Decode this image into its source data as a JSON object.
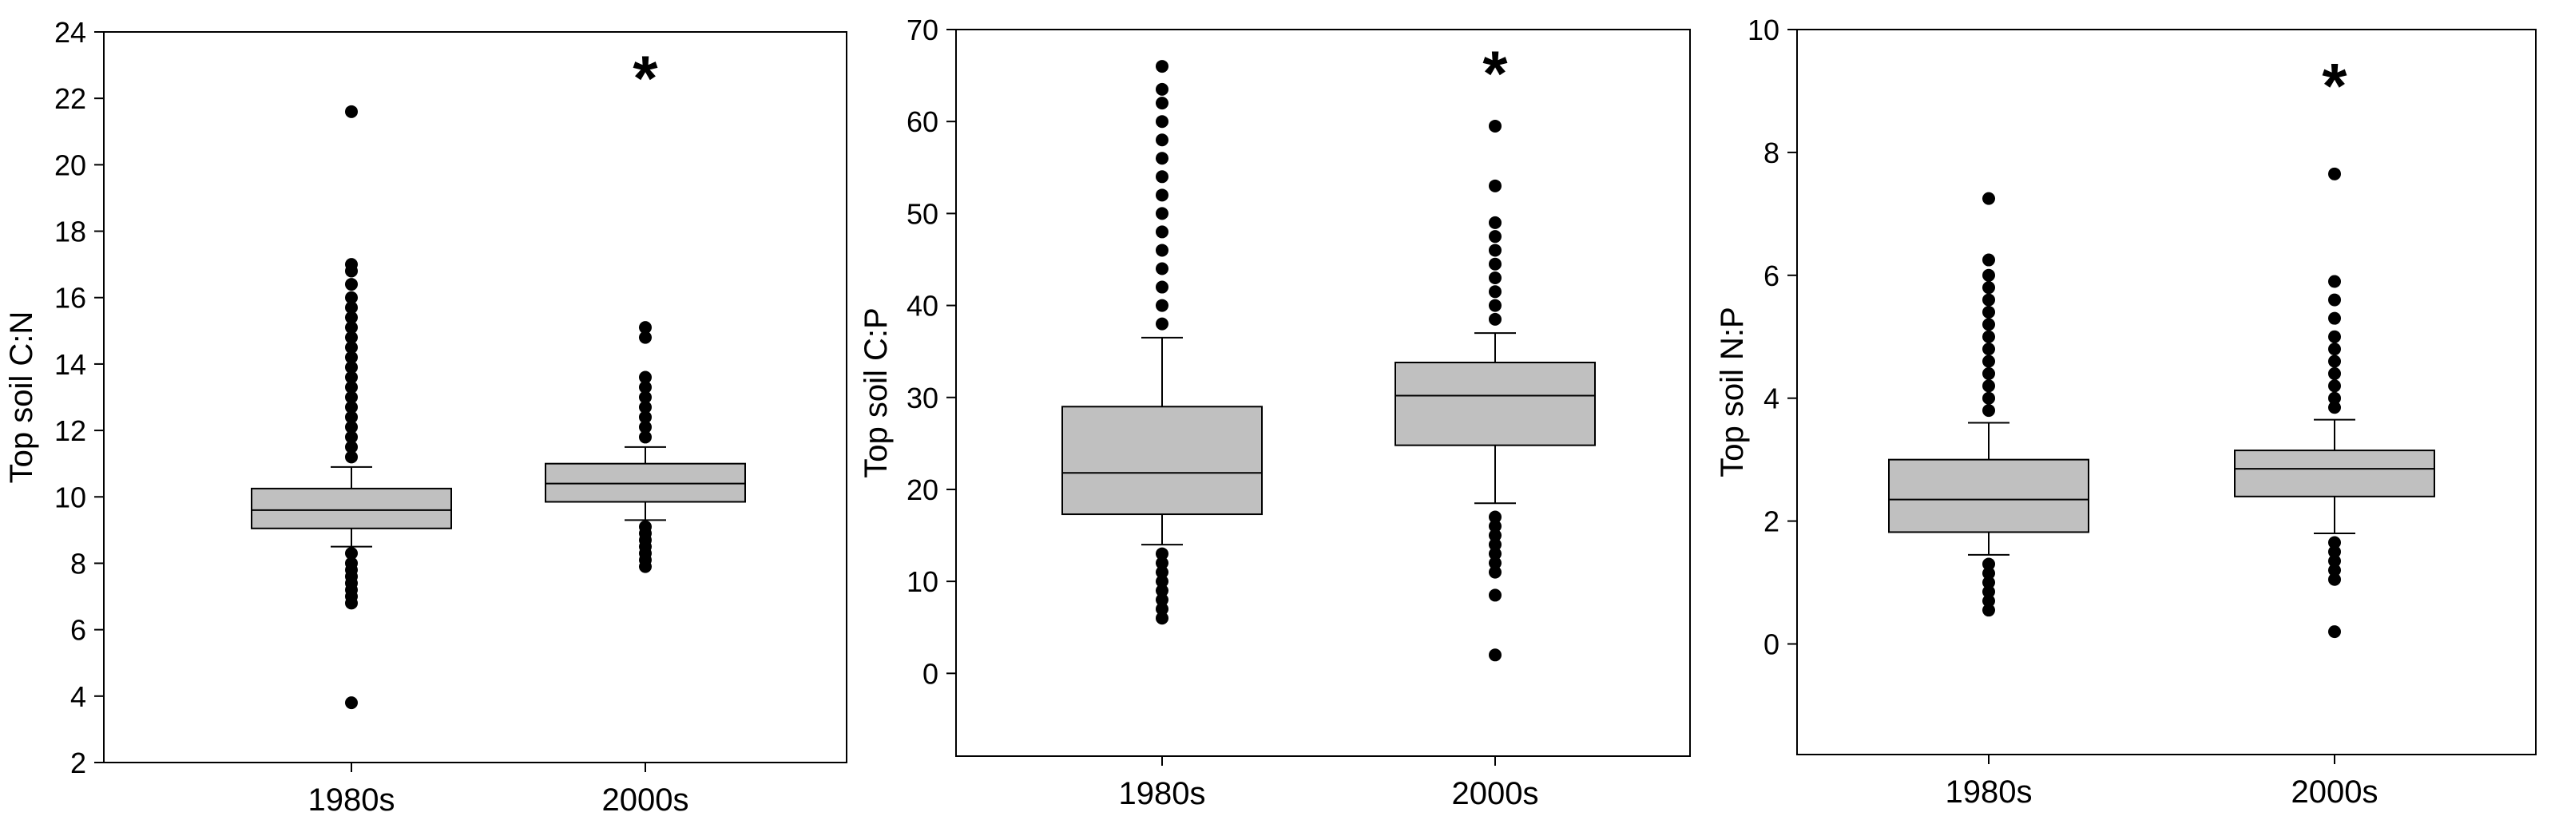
{
  "chart_data": [
    {
      "type": "boxplot",
      "ylabel": "Top soil C:N",
      "ylim": [
        2,
        24
      ],
      "yticks": [
        2,
        4,
        6,
        8,
        10,
        12,
        14,
        16,
        18,
        20,
        22,
        24
      ],
      "categories": [
        "1980s",
        "2000s"
      ],
      "boxes": [
        {
          "category": "1980s",
          "whisker_low": 8.5,
          "q1": 9.05,
          "median": 9.6,
          "q3": 10.25,
          "whisker_high": 10.9,
          "outliers_low": [
            8.3,
            8.0,
            7.8,
            7.6,
            7.4,
            7.2,
            7.0,
            6.8,
            3.8
          ],
          "outliers_high": [
            11.2,
            11.5,
            11.8,
            12.1,
            12.4,
            12.7,
            13.0,
            13.3,
            13.6,
            13.9,
            14.2,
            14.5,
            14.8,
            15.1,
            15.4,
            15.7,
            16.0,
            16.4,
            16.8,
            17.0,
            21.6
          ]
        },
        {
          "category": "2000s",
          "whisker_low": 9.3,
          "q1": 9.85,
          "median": 10.4,
          "q3": 11.0,
          "whisker_high": 11.5,
          "outliers_low": [
            9.1,
            8.9,
            8.7,
            8.5,
            8.3,
            8.1,
            7.9
          ],
          "outliers_high": [
            11.8,
            12.1,
            12.4,
            12.7,
            13.0,
            13.3,
            13.6,
            14.8,
            15.1
          ]
        }
      ],
      "annotations": [
        {
          "text": "*",
          "category": "2000s",
          "y": 23.1
        }
      ]
    },
    {
      "type": "boxplot",
      "ylabel": "Top soil C:P",
      "ylim": [
        -9,
        70
      ],
      "yticks": [
        0,
        10,
        20,
        30,
        40,
        50,
        60,
        70
      ],
      "categories": [
        "1980s",
        "2000s"
      ],
      "boxes": [
        {
          "category": "1980s",
          "whisker_low": 14,
          "q1": 17.3,
          "median": 21.8,
          "q3": 29,
          "whisker_high": 36.5,
          "outliers_low": [
            13,
            12,
            11,
            10,
            9,
            8,
            7,
            6
          ],
          "outliers_high": [
            38,
            40,
            42,
            44,
            46,
            48,
            50,
            52,
            54,
            56,
            58,
            60,
            62,
            63.5,
            66
          ]
        },
        {
          "category": "2000s",
          "whisker_low": 18.5,
          "q1": 24.8,
          "median": 30.2,
          "q3": 33.8,
          "whisker_high": 37,
          "outliers_low": [
            17,
            16,
            15,
            14,
            13,
            12,
            11,
            8.5,
            2
          ],
          "outliers_high": [
            38.5,
            40,
            41.5,
            43,
            44.5,
            46,
            47.5,
            49,
            53,
            59.5
          ]
        }
      ],
      "annotations": [
        {
          "text": "*",
          "category": "2000s",
          "y": 67
        }
      ]
    },
    {
      "type": "boxplot",
      "ylabel": "Top soil N:P",
      "ylim": [
        -1.8,
        10
      ],
      "yticks": [
        0,
        2,
        4,
        6,
        8,
        10
      ],
      "categories": [
        "1980s",
        "2000s"
      ],
      "boxes": [
        {
          "category": "1980s",
          "whisker_low": 1.45,
          "q1": 1.82,
          "median": 2.35,
          "q3": 3.0,
          "whisker_high": 3.6,
          "outliers_low": [
            1.3,
            1.15,
            1.0,
            0.85,
            0.7,
            0.55
          ],
          "outliers_high": [
            3.8,
            4.0,
            4.2,
            4.4,
            4.6,
            4.8,
            5.0,
            5.2,
            5.4,
            5.6,
            5.8,
            6.0,
            6.25,
            7.25
          ]
        },
        {
          "category": "2000s",
          "whisker_low": 1.8,
          "q1": 2.4,
          "median": 2.85,
          "q3": 3.15,
          "whisker_high": 3.65,
          "outliers_low": [
            1.65,
            1.5,
            1.35,
            1.2,
            1.05,
            0.2
          ],
          "outliers_high": [
            3.85,
            4.0,
            4.2,
            4.4,
            4.6,
            4.8,
            5.0,
            5.3,
            5.6,
            5.9,
            7.65
          ]
        }
      ],
      "annotations": [
        {
          "text": "*",
          "category": "2000s",
          "y": 9.35
        }
      ]
    }
  ]
}
